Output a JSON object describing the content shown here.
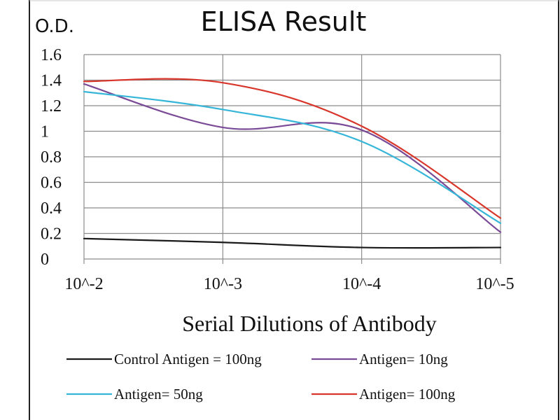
{
  "chart_data": {
    "type": "line",
    "title": "ELISA Result",
    "ylabel": "O.D.",
    "xlabel": "Serial Dilutions of Antibody",
    "x": [
      0.01,
      0.001,
      0.0001,
      1e-05
    ],
    "x_tick_labels": [
      "10^-2",
      "10^-3",
      "10^-4",
      "10^-5"
    ],
    "x_scale": "log",
    "ylim": [
      0,
      1.6
    ],
    "y_ticks": [
      0,
      0.2,
      0.4,
      0.6,
      0.8,
      1,
      1.2,
      1.4,
      1.6
    ],
    "y_tick_labels": [
      "0",
      "0.2",
      "0.4",
      "0.6",
      "0.8",
      "1",
      "1.2",
      "1.4",
      "1.6"
    ],
    "grid": true,
    "legend_position": "bottom",
    "series": [
      {
        "name": "Control Antigen = 100ng",
        "color": "#1a1a1a",
        "values": [
          0.16,
          0.13,
          0.09,
          0.09
        ]
      },
      {
        "name": "Antigen= 10ng",
        "color": "#7a4a96",
        "values": [
          1.37,
          1.03,
          1.01,
          0.21
        ]
      },
      {
        "name": "Antigen= 50ng",
        "color": "#35b6d8",
        "values": [
          1.31,
          1.17,
          0.92,
          0.28
        ]
      },
      {
        "name": "Antigen= 100ng",
        "color": "#d9362b",
        "values": [
          1.39,
          1.38,
          1.04,
          0.32
        ]
      }
    ]
  }
}
